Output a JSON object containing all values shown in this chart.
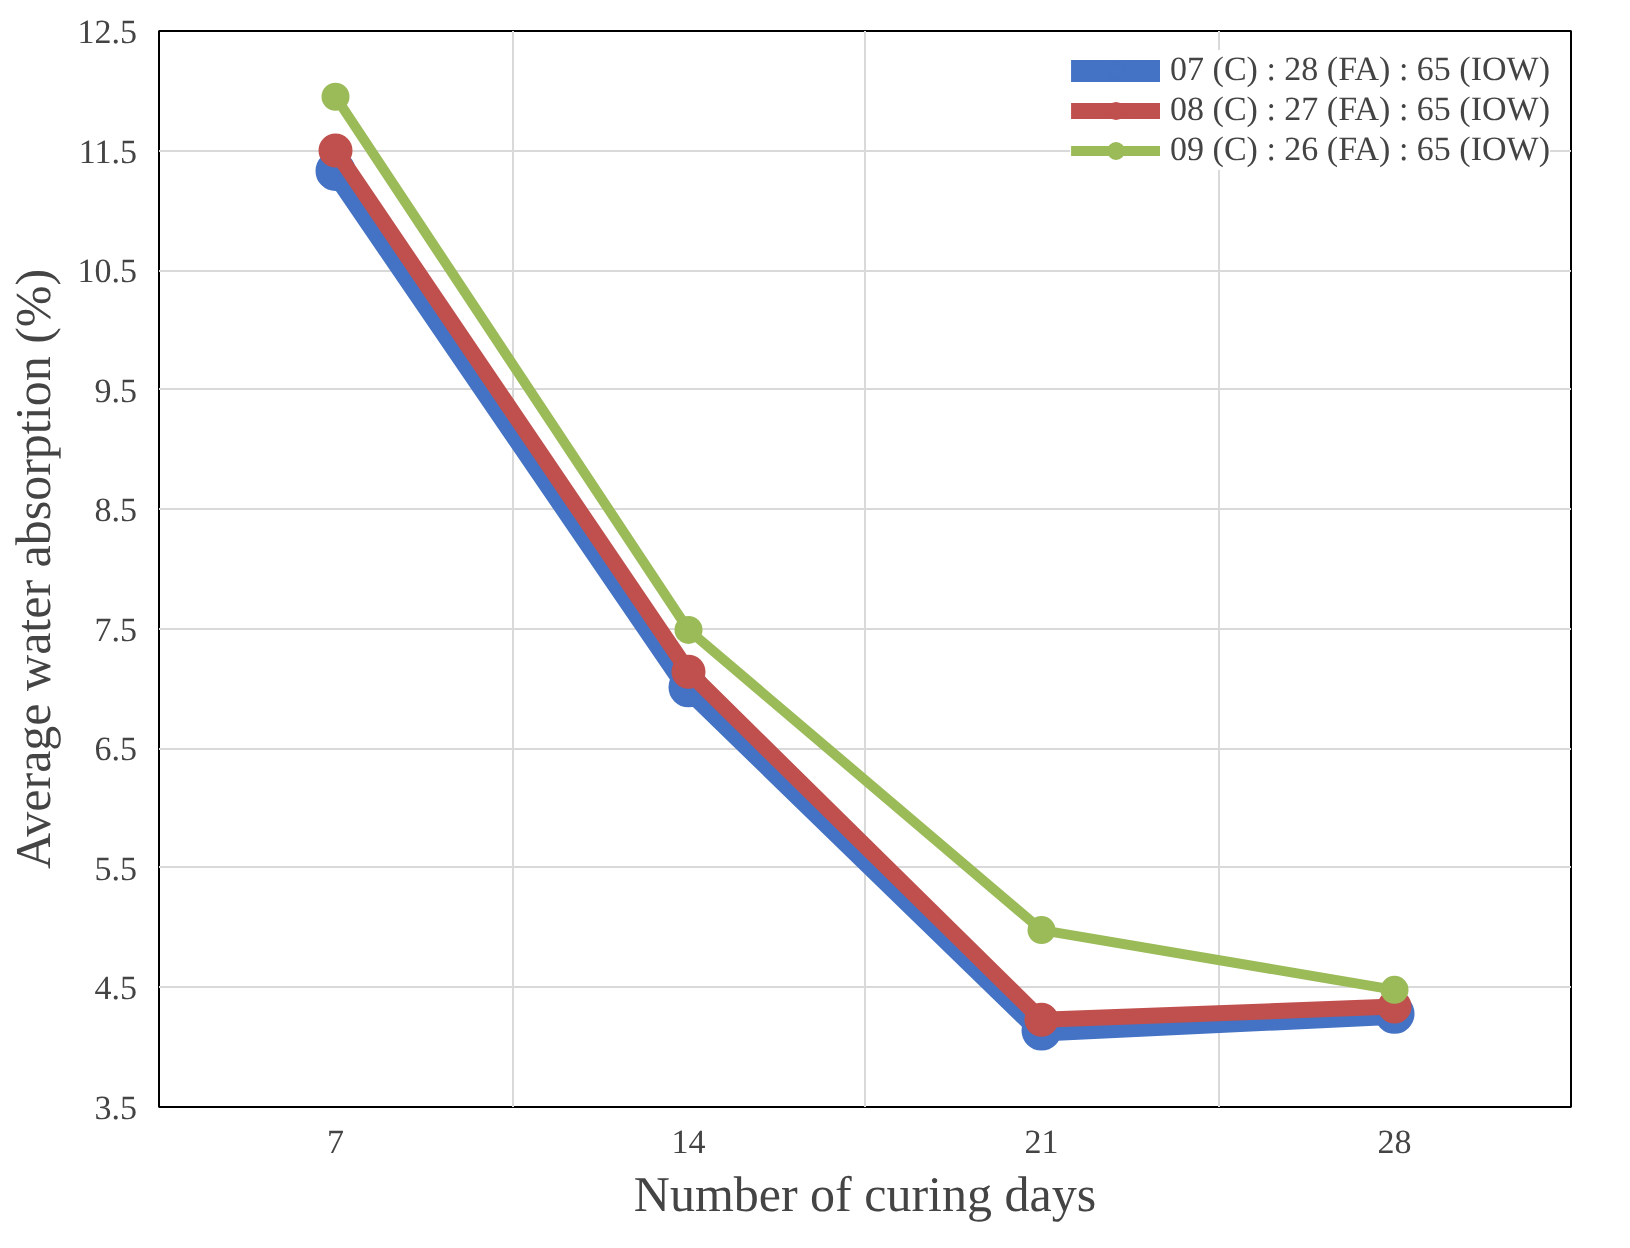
{
  "chart_data": {
    "type": "line",
    "xlabel": "Number of curing days",
    "ylabel": "Average water absorption (%)",
    "categories": [
      "7",
      "14",
      "21",
      "28"
    ],
    "series": [
      {
        "name": "07 (C) : 28 (FA) : 65 (IOW)",
        "color": "#4472c4",
        "values": [
          11.33,
          7.01,
          4.14,
          4.28
        ]
      },
      {
        "name": "08 (C) : 27 (FA) : 65 (IOW)",
        "color": "#c0504d",
        "values": [
          11.5,
          7.14,
          4.23,
          4.34
        ]
      },
      {
        "name": "09 (C) : 26 (FA) : 65 (IOW)",
        "color": "#9bbb59",
        "values": [
          11.95,
          7.49,
          4.98,
          4.48
        ]
      }
    ],
    "ylim": [
      3.5,
      12.5
    ],
    "yticks": [
      3.5,
      4.5,
      5.5,
      6.5,
      7.5,
      8.5,
      9.5,
      10.5,
      11.5,
      12.5
    ],
    "grid": true,
    "legend": "top right",
    "marker": "circle",
    "line_style": "solid"
  }
}
